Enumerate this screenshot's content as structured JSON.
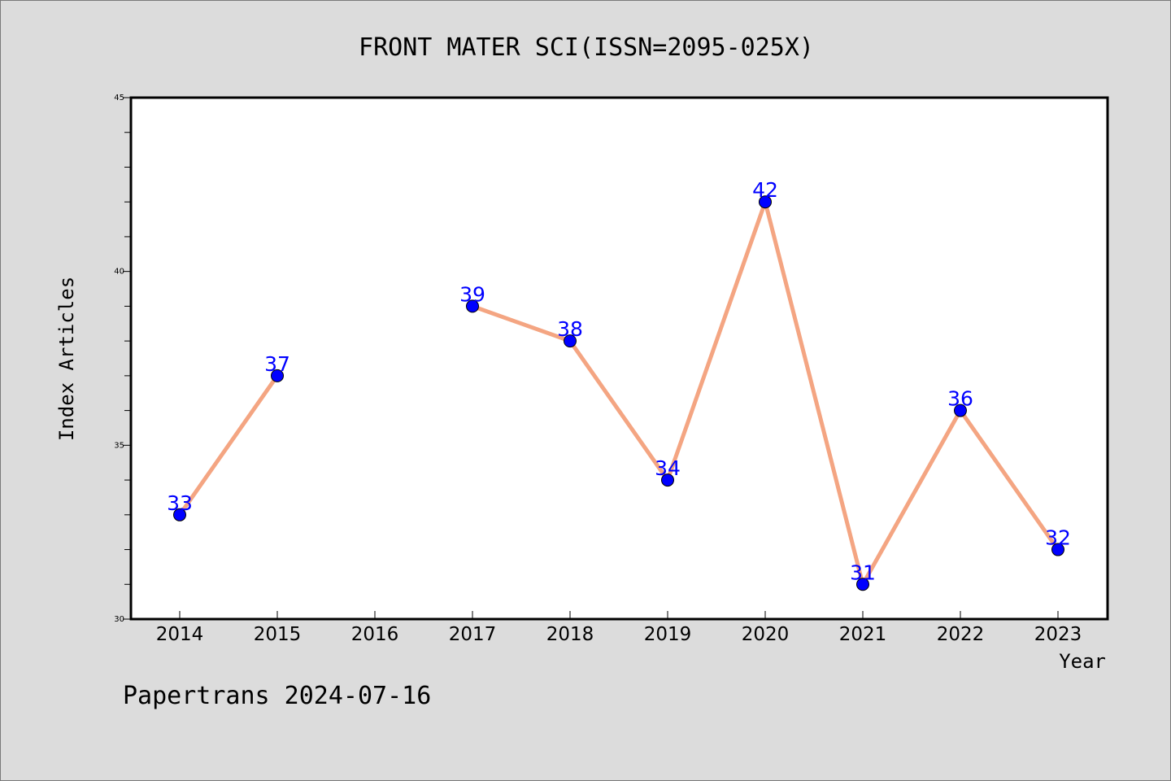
{
  "chart_data": {
    "type": "line",
    "title": "FRONT MATER SCI(ISSN=2095-025X)",
    "xlabel": "Year",
    "ylabel": "Index Articles",
    "categories": [
      "2014",
      "2015",
      "2016",
      "2017",
      "2018",
      "2019",
      "2020",
      "2021",
      "2022",
      "2023"
    ],
    "series": [
      {
        "values": [
          33,
          37,
          null,
          39,
          38,
          34,
          42,
          31,
          36,
          32
        ]
      }
    ],
    "data_labels": [
      "33",
      "37",
      "",
      "39",
      "38",
      "34",
      "42",
      "31",
      "36",
      "32"
    ],
    "ylim": [
      30,
      45
    ],
    "y_ticks": [
      "30",
      "35",
      "40",
      "45"
    ],
    "grid": false,
    "colors": {
      "line": "#f4a582",
      "marker": "#0000ff",
      "label": "#0000ff",
      "background": "#dcdcdc",
      "plot_background": "#ffffff"
    }
  },
  "footer": {
    "text": "Papertrans 2024-07-16"
  }
}
